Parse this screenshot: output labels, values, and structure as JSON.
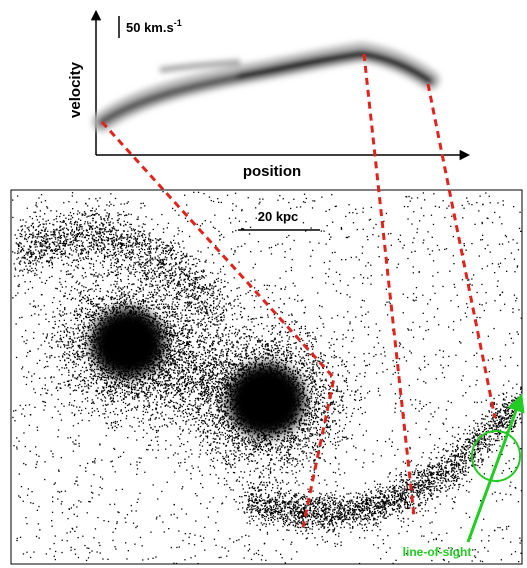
{
  "upper_plot": {
    "y_axis_label": "velocity",
    "x_axis_label": "position",
    "velocity_scale_prefix": "50 km.s",
    "velocity_scale_superscript": "-1"
  },
  "lower_panel": {
    "scale_bar_label": "20 kpc",
    "line_of_sight_label": "line-of-sight"
  },
  "colors": {
    "projection_lines": "#e0241b",
    "line_of_sight": "#22cc22",
    "points": "#000000",
    "axes": "#000000"
  }
}
